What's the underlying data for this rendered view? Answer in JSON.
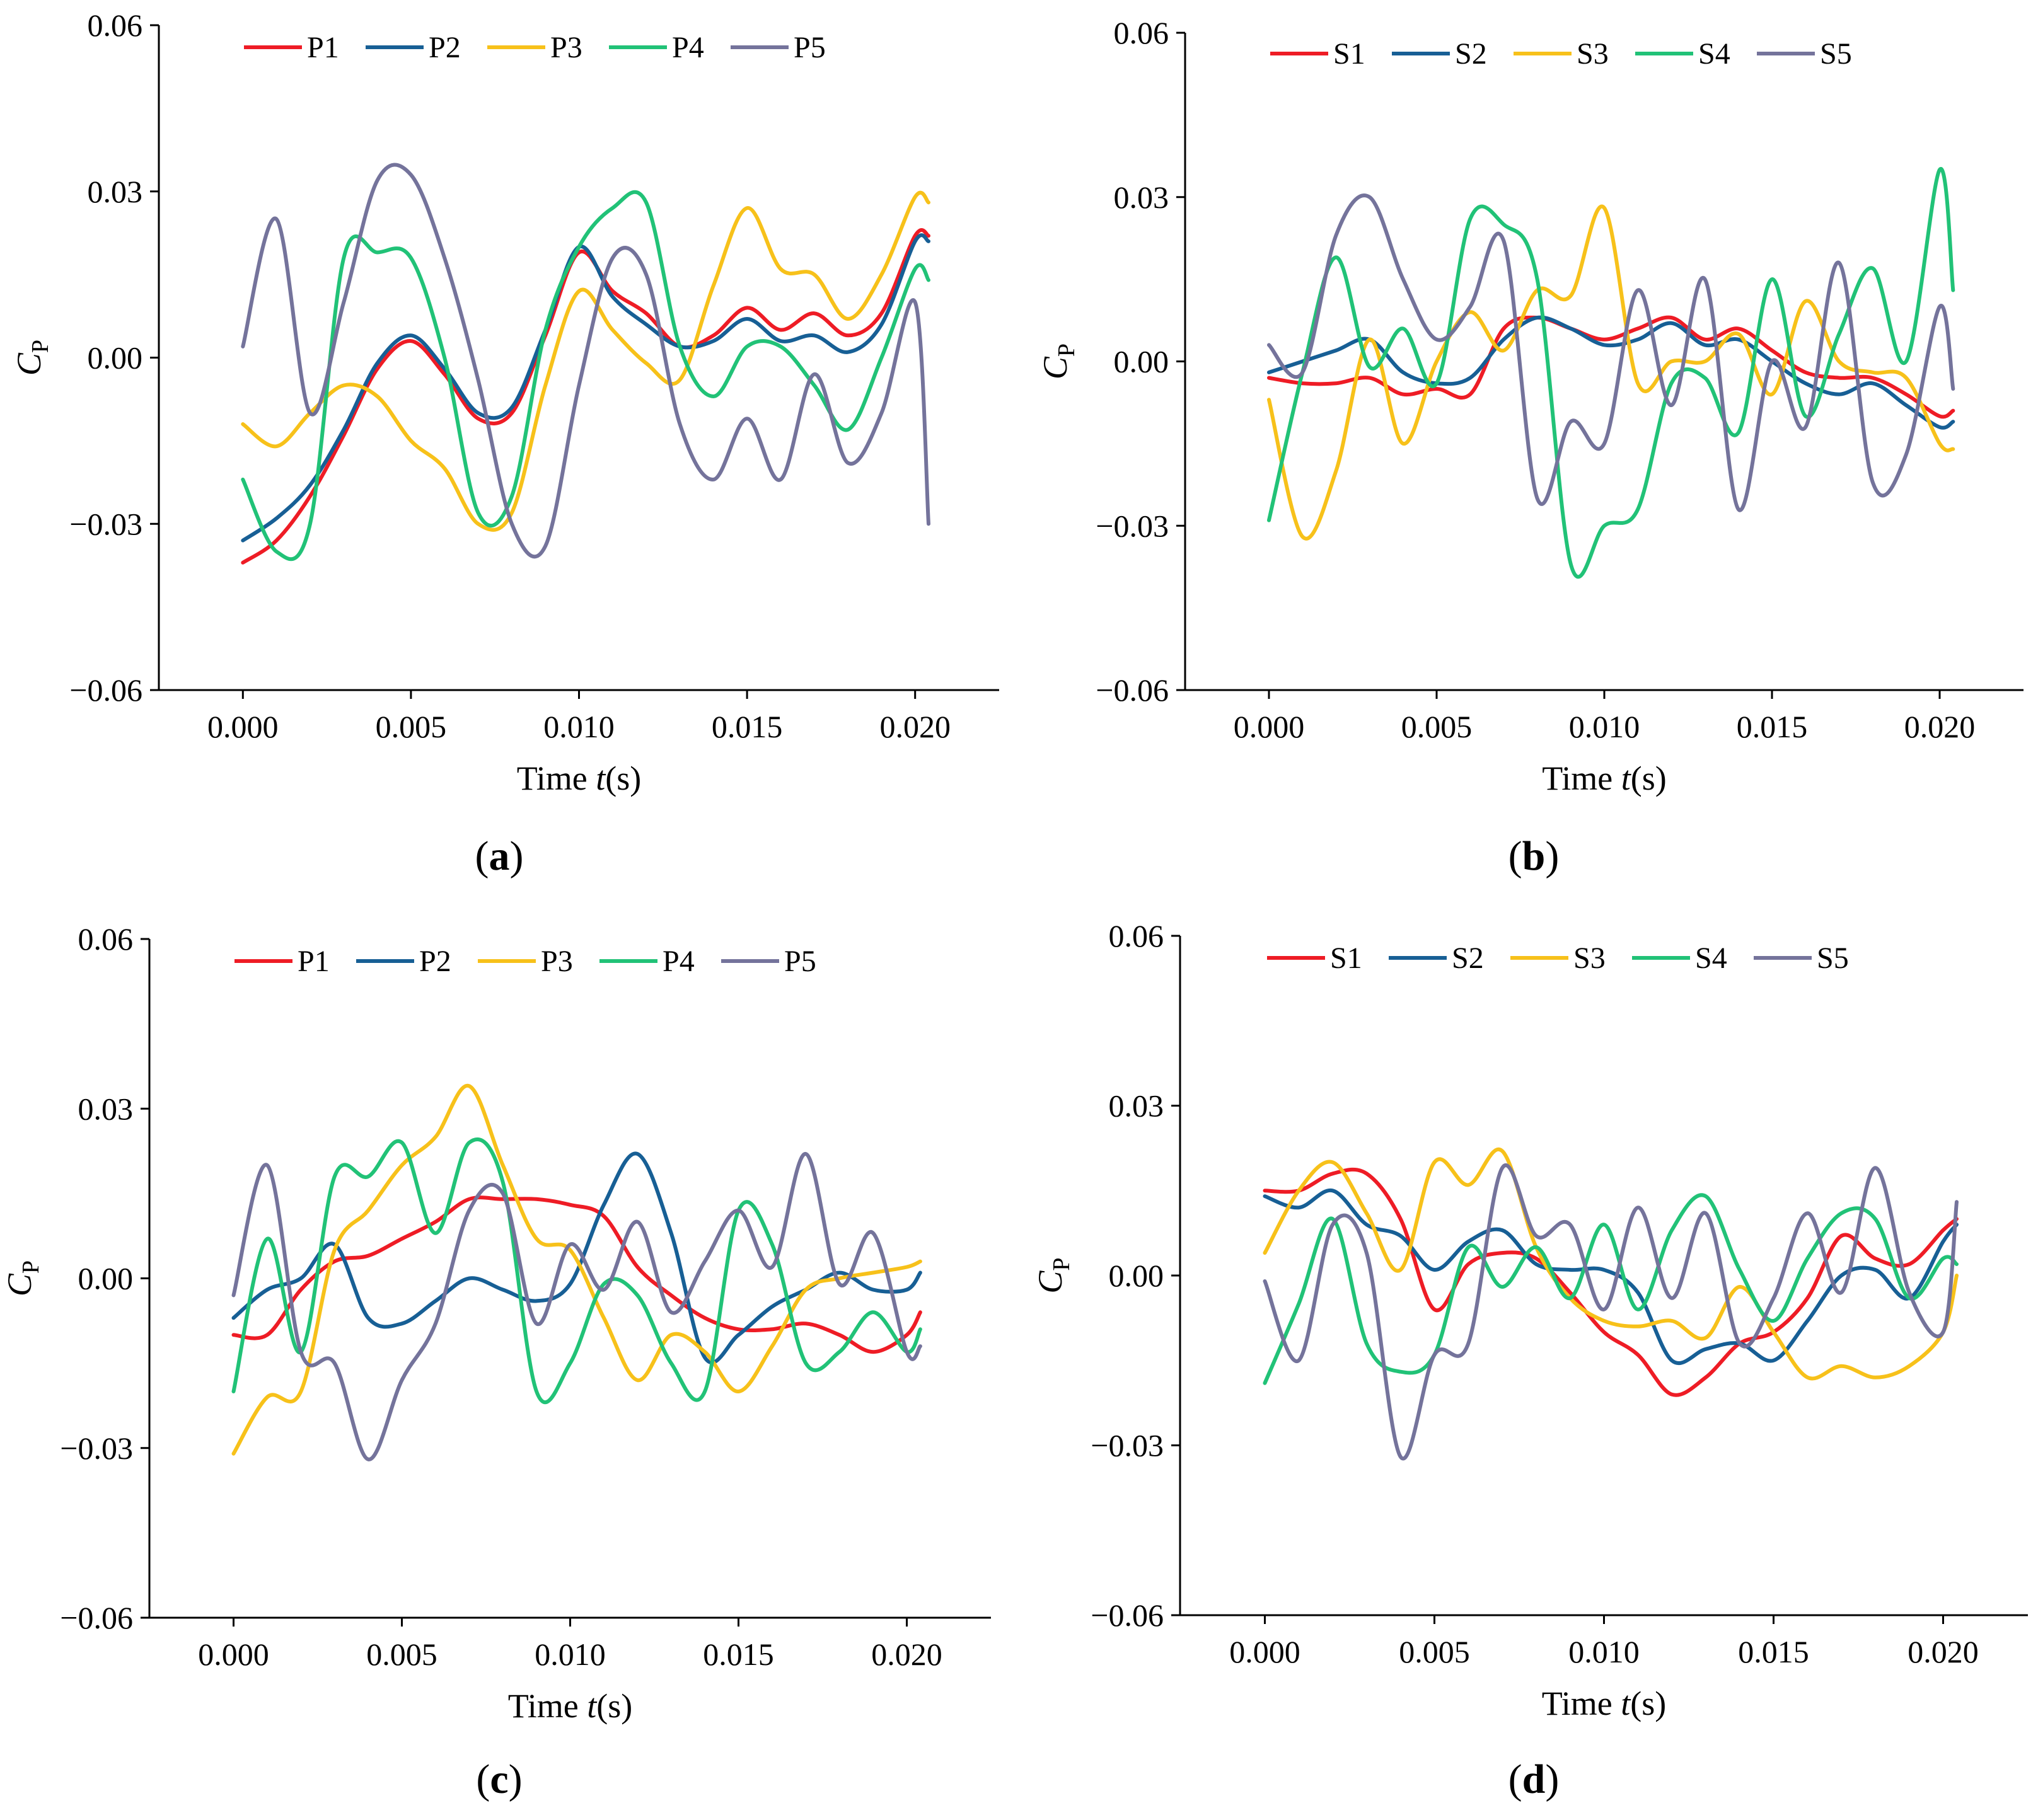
{
  "figure": {
    "panel_labels": [
      "(a)",
      "(b)",
      "(c)",
      "(d)"
    ],
    "colors": {
      "series1": "#ee1c25",
      "series2": "#175f95",
      "series3": "#f7c11a",
      "series4": "#21c277",
      "series5": "#74739b",
      "axis": "#000000"
    }
  },
  "chart_data": [
    {
      "type": "line",
      "panel": "(a)",
      "xlabel_prefix": "Time ",
      "xlabel_var": "t",
      "xlabel_unit": "(s)",
      "ylabel_main": "C",
      "ylabel_sub": "P",
      "xlim": [
        -0.0025,
        0.0225
      ],
      "ylim": [
        -0.06,
        0.06
      ],
      "xticks": [
        0.0,
        0.005,
        0.01,
        0.015,
        0.02
      ],
      "xtick_labels": [
        "0.000",
        "0.005",
        "0.010",
        "0.015",
        "0.020"
      ],
      "yticks": [
        -0.06,
        -0.03,
        0.0,
        0.03,
        0.06
      ],
      "ytick_labels": [
        "−0.06",
        "−0.03",
        "0.00",
        "0.03",
        "0.06"
      ],
      "legend_position": "top",
      "x": [
        0.0,
        0.001,
        0.002,
        0.003,
        0.004,
        0.005,
        0.006,
        0.007,
        0.008,
        0.009,
        0.01,
        0.011,
        0.012,
        0.013,
        0.014,
        0.015,
        0.016,
        0.017,
        0.018,
        0.019,
        0.02,
        0.0204
      ],
      "series": [
        {
          "name": "P1",
          "values": [
            -0.037,
            -0.033,
            -0.025,
            -0.014,
            -0.002,
            0.003,
            -0.003,
            -0.011,
            -0.01,
            0.004,
            0.019,
            0.012,
            0.008,
            0.002,
            0.004,
            0.009,
            0.005,
            0.008,
            0.004,
            0.008,
            0.022,
            0.022
          ]
        },
        {
          "name": "P2",
          "values": [
            -0.033,
            -0.029,
            -0.023,
            -0.013,
            -0.001,
            0.004,
            -0.002,
            -0.01,
            -0.009,
            0.005,
            0.02,
            0.011,
            0.006,
            0.002,
            0.003,
            0.007,
            0.003,
            0.004,
            0.001,
            0.006,
            0.021,
            0.021
          ]
        },
        {
          "name": "P3",
          "values": [
            -0.012,
            -0.016,
            -0.01,
            -0.005,
            -0.007,
            -0.015,
            -0.02,
            -0.03,
            -0.028,
            -0.005,
            0.012,
            0.005,
            -0.001,
            -0.004,
            0.013,
            0.027,
            0.016,
            0.015,
            0.007,
            0.015,
            0.029,
            0.028
          ]
        },
        {
          "name": "P4",
          "values": [
            -0.022,
            -0.035,
            -0.03,
            0.018,
            0.019,
            0.018,
            0.0,
            -0.028,
            -0.025,
            0.005,
            0.02,
            0.027,
            0.028,
            0.002,
            -0.007,
            0.002,
            0.002,
            -0.005,
            -0.013,
            0.0,
            0.016,
            0.014
          ]
        },
        {
          "name": "P5",
          "values": [
            0.002,
            0.025,
            -0.01,
            0.01,
            0.032,
            0.033,
            0.018,
            -0.004,
            -0.03,
            -0.034,
            -0.005,
            0.018,
            0.015,
            -0.012,
            -0.022,
            -0.011,
            -0.022,
            -0.003,
            -0.019,
            -0.01,
            0.01,
            -0.03
          ]
        }
      ]
    },
    {
      "type": "line",
      "panel": "(b)",
      "xlabel_prefix": "Time ",
      "xlabel_var": "t",
      "xlabel_unit": "(s)",
      "ylabel_main": "C",
      "ylabel_sub": "P",
      "xlim": [
        -0.0025,
        0.0225
      ],
      "ylim": [
        -0.06,
        0.06
      ],
      "xticks": [
        0.0,
        0.005,
        0.01,
        0.015,
        0.02
      ],
      "xtick_labels": [
        "0.000",
        "0.005",
        "0.010",
        "0.015",
        "0.020"
      ],
      "yticks": [
        -0.06,
        -0.03,
        0.0,
        0.03,
        0.06
      ],
      "ytick_labels": [
        "−0.06",
        "−0.03",
        "0.00",
        "0.03",
        "0.06"
      ],
      "legend_position": "top",
      "x": [
        0.0,
        0.001,
        0.002,
        0.003,
        0.004,
        0.005,
        0.006,
        0.007,
        0.008,
        0.009,
        0.01,
        0.011,
        0.012,
        0.013,
        0.014,
        0.015,
        0.016,
        0.017,
        0.018,
        0.019,
        0.02,
        0.0204
      ],
      "series": [
        {
          "name": "S1",
          "values": [
            -0.003,
            -0.004,
            -0.004,
            -0.003,
            -0.006,
            -0.005,
            -0.006,
            0.006,
            0.008,
            0.006,
            0.004,
            0.006,
            0.008,
            0.004,
            0.006,
            0.002,
            -0.002,
            -0.003,
            -0.003,
            -0.006,
            -0.01,
            -0.009
          ]
        },
        {
          "name": "S2",
          "values": [
            -0.002,
            0.0,
            0.002,
            0.004,
            -0.002,
            -0.004,
            -0.003,
            0.004,
            0.008,
            0.006,
            0.003,
            0.004,
            0.007,
            0.003,
            0.004,
            0.0,
            -0.004,
            -0.006,
            -0.004,
            -0.008,
            -0.012,
            -0.011
          ]
        },
        {
          "name": "S3",
          "values": [
            -0.007,
            -0.032,
            -0.02,
            0.004,
            -0.015,
            0.0,
            0.009,
            0.002,
            0.013,
            0.012,
            0.028,
            -0.004,
            0.0,
            0.0,
            0.005,
            -0.006,
            0.011,
            0.0,
            -0.002,
            -0.003,
            -0.015,
            -0.016
          ]
        },
        {
          "name": "S4",
          "values": [
            -0.029,
            -0.002,
            0.019,
            -0.001,
            0.006,
            -0.004,
            0.026,
            0.025,
            0.015,
            -0.037,
            -0.03,
            -0.027,
            -0.004,
            -0.003,
            -0.013,
            0.015,
            -0.01,
            0.005,
            0.017,
            0.0,
            0.035,
            0.013
          ]
        },
        {
          "name": "S5",
          "values": [
            0.003,
            -0.002,
            0.023,
            0.03,
            0.015,
            0.004,
            0.01,
            0.022,
            -0.025,
            -0.011,
            -0.015,
            0.013,
            -0.008,
            0.015,
            -0.027,
            0.0,
            -0.012,
            0.018,
            -0.022,
            -0.017,
            0.01,
            -0.005
          ]
        }
      ]
    },
    {
      "type": "line",
      "panel": "(c)",
      "xlabel_prefix": "Time ",
      "xlabel_var": "t",
      "xlabel_unit": "(s)",
      "ylabel_main": "C",
      "ylabel_sub": "P",
      "xlim": [
        -0.0025,
        0.0225
      ],
      "ylim": [
        -0.06,
        0.06
      ],
      "xticks": [
        0.0,
        0.005,
        0.01,
        0.015,
        0.02
      ],
      "xtick_labels": [
        "0.000",
        "0.005",
        "0.010",
        "0.015",
        "0.020"
      ],
      "yticks": [
        -0.06,
        -0.03,
        0.0,
        0.03,
        0.06
      ],
      "ytick_labels": [
        "−0.06",
        "−0.03",
        "0.00",
        "0.03",
        "0.06"
      ],
      "legend_position": "top",
      "x": [
        0.0,
        0.001,
        0.002,
        0.003,
        0.004,
        0.005,
        0.006,
        0.007,
        0.008,
        0.009,
        0.01,
        0.011,
        0.012,
        0.013,
        0.014,
        0.015,
        0.016,
        0.017,
        0.018,
        0.019,
        0.02,
        0.0204
      ],
      "series": [
        {
          "name": "P1",
          "values": [
            -0.01,
            -0.01,
            -0.002,
            0.003,
            0.004,
            0.007,
            0.01,
            0.014,
            0.014,
            0.014,
            0.013,
            0.011,
            0.002,
            -0.003,
            -0.007,
            -0.009,
            -0.009,
            -0.008,
            -0.01,
            -0.013,
            -0.01,
            -0.006
          ]
        },
        {
          "name": "P2",
          "values": [
            -0.007,
            -0.002,
            0.0,
            0.006,
            -0.007,
            -0.008,
            -0.004,
            0.0,
            -0.002,
            -0.004,
            -0.001,
            0.013,
            0.022,
            0.008,
            -0.014,
            -0.01,
            -0.005,
            -0.002,
            0.001,
            -0.002,
            -0.002,
            0.001
          ]
        },
        {
          "name": "P3",
          "values": [
            -0.031,
            -0.021,
            -0.02,
            0.005,
            0.012,
            0.02,
            0.025,
            0.034,
            0.02,
            0.007,
            0.005,
            -0.007,
            -0.018,
            -0.01,
            -0.013,
            -0.02,
            -0.012,
            -0.002,
            0.0,
            0.001,
            0.002,
            0.003
          ]
        },
        {
          "name": "P4",
          "values": [
            -0.02,
            0.007,
            -0.013,
            0.018,
            0.018,
            0.024,
            0.008,
            0.024,
            0.017,
            -0.02,
            -0.015,
            -0.001,
            -0.003,
            -0.015,
            -0.02,
            0.012,
            0.006,
            -0.015,
            -0.013,
            -0.006,
            -0.013,
            -0.009
          ]
        },
        {
          "name": "P5",
          "values": [
            -0.003,
            0.02,
            -0.013,
            -0.015,
            -0.032,
            -0.018,
            -0.008,
            0.012,
            0.015,
            -0.008,
            0.006,
            -0.002,
            0.01,
            -0.006,
            0.003,
            0.012,
            0.002,
            0.022,
            -0.001,
            0.008,
            -0.013,
            -0.012
          ]
        }
      ]
    },
    {
      "type": "line",
      "panel": "(d)",
      "xlabel_prefix": "Time ",
      "xlabel_var": "t",
      "xlabel_unit": "(s)",
      "ylabel_main": "C",
      "ylabel_sub": "P",
      "xlim": [
        -0.0025,
        0.0225
      ],
      "ylim": [
        -0.06,
        0.06
      ],
      "xticks": [
        0.0,
        0.005,
        0.01,
        0.015,
        0.02
      ],
      "xtick_labels": [
        "0.000",
        "0.005",
        "0.010",
        "0.015",
        "0.020"
      ],
      "yticks": [
        -0.06,
        -0.03,
        0.0,
        0.03,
        0.06
      ],
      "ytick_labels": [
        "−0.06",
        "−0.03",
        "0.00",
        "0.03",
        "0.06"
      ],
      "legend_position": "top",
      "x": [
        0.0,
        0.001,
        0.002,
        0.003,
        0.004,
        0.005,
        0.006,
        0.007,
        0.008,
        0.009,
        0.01,
        0.011,
        0.012,
        0.013,
        0.014,
        0.015,
        0.016,
        0.017,
        0.018,
        0.019,
        0.02,
        0.0204
      ],
      "series": [
        {
          "name": "S1",
          "values": [
            0.015,
            0.015,
            0.018,
            0.018,
            0.01,
            -0.006,
            0.002,
            0.004,
            0.003,
            -0.003,
            -0.01,
            -0.014,
            -0.021,
            -0.018,
            -0.012,
            -0.01,
            -0.004,
            0.007,
            0.003,
            0.002,
            0.008,
            0.01
          ]
        },
        {
          "name": "S2",
          "values": [
            0.014,
            0.012,
            0.015,
            0.009,
            0.007,
            0.001,
            0.006,
            0.008,
            0.002,
            0.001,
            0.001,
            -0.003,
            -0.015,
            -0.013,
            -0.012,
            -0.015,
            -0.008,
            0.0,
            0.001,
            -0.004,
            0.006,
            0.009
          ]
        },
        {
          "name": "S3",
          "values": [
            0.004,
            0.015,
            0.02,
            0.011,
            0.001,
            0.02,
            0.016,
            0.022,
            0.005,
            -0.004,
            -0.008,
            -0.009,
            -0.008,
            -0.011,
            -0.002,
            -0.01,
            -0.018,
            -0.016,
            -0.018,
            -0.016,
            -0.01,
            0.0
          ]
        },
        {
          "name": "S4",
          "values": [
            -0.019,
            -0.005,
            0.01,
            -0.012,
            -0.017,
            -0.014,
            0.005,
            -0.002,
            0.005,
            -0.004,
            0.009,
            -0.006,
            0.008,
            0.014,
            0.001,
            -0.008,
            0.003,
            0.011,
            0.01,
            -0.004,
            0.003,
            0.002
          ]
        },
        {
          "name": "S5",
          "values": [
            -0.001,
            -0.015,
            0.009,
            0.004,
            -0.032,
            -0.014,
            -0.012,
            0.019,
            0.007,
            0.009,
            -0.006,
            0.012,
            -0.004,
            0.011,
            -0.012,
            -0.004,
            0.011,
            -0.003,
            0.019,
            -0.003,
            -0.01,
            0.013
          ]
        }
      ]
    }
  ]
}
